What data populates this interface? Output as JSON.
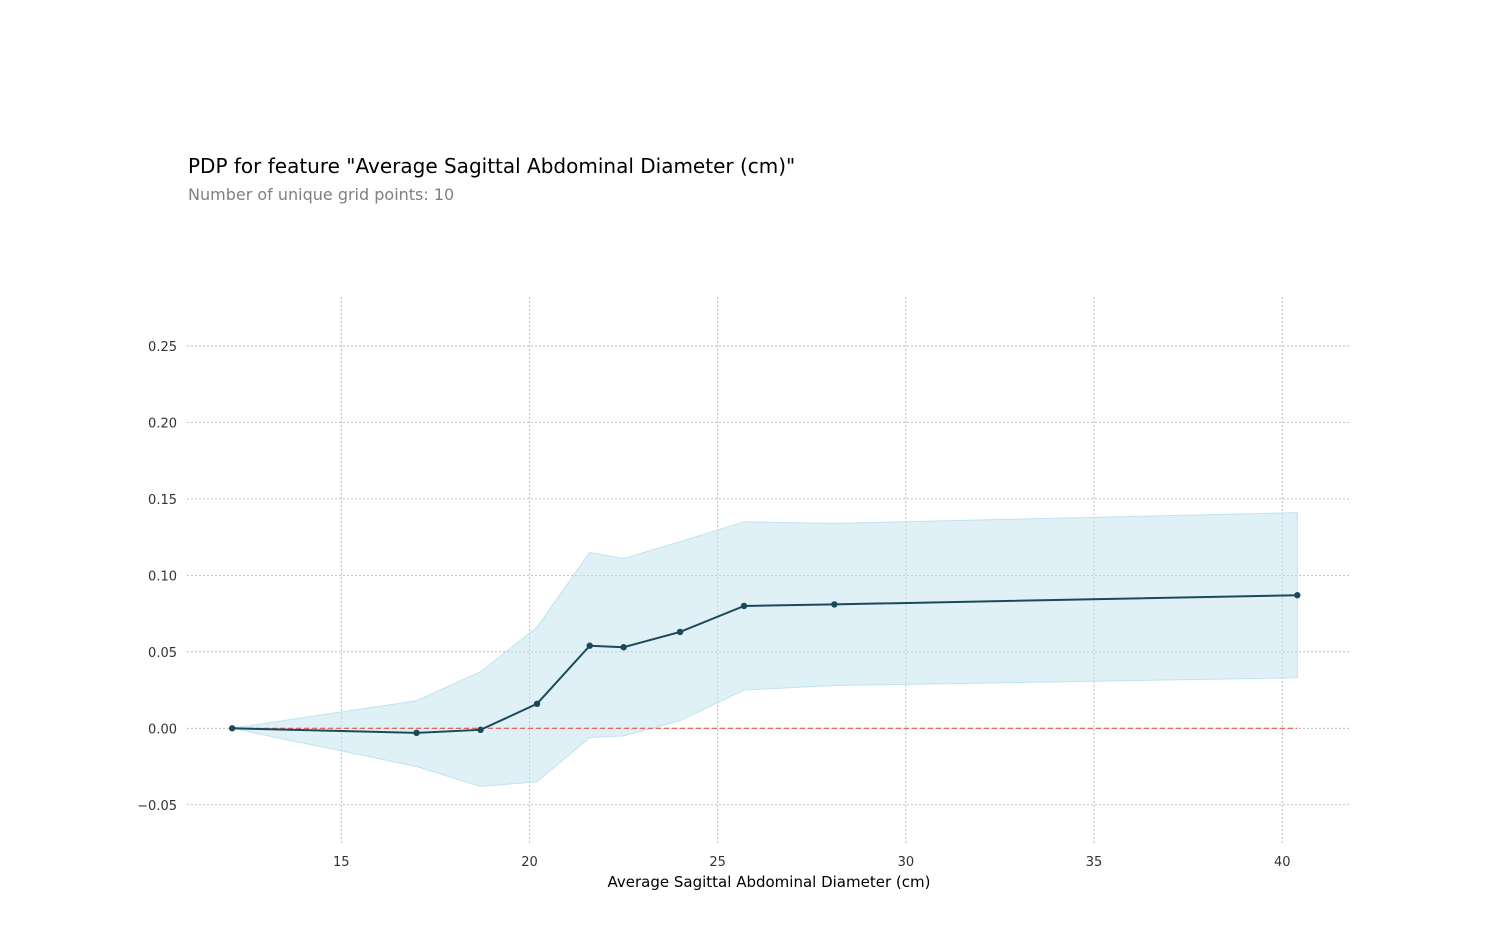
{
  "chart_data": {
    "type": "line",
    "title": "PDP for feature \"Average Sagittal Abdominal Diameter (cm)\"",
    "subtitle": "Number of unique grid points: 10",
    "xlabel": "Average Sagittal Abdominal Diameter (cm)",
    "ylabel": "",
    "xlim": [
      10.9,
      41.8
    ],
    "ylim": [
      -0.075,
      0.282
    ],
    "xticks": [
      15,
      20,
      25,
      30,
      35,
      40
    ],
    "xtick_labels": [
      "15",
      "20",
      "25",
      "30",
      "35",
      "40"
    ],
    "yticks": [
      -0.05,
      0.0,
      0.05,
      0.1,
      0.15,
      0.2,
      0.25
    ],
    "ytick_labels": [
      "−0.05",
      "0.00",
      "0.05",
      "0.10",
      "0.15",
      "0.20",
      "0.25"
    ],
    "grid": true,
    "legend": "none",
    "series": [
      {
        "x": [
          12.1,
          17.0,
          18.7,
          20.2,
          21.6,
          22.5,
          24.0,
          25.7,
          28.1,
          40.4
        ],
        "values": [
          0.0,
          -0.003,
          -0.001,
          0.016,
          0.054,
          0.053,
          0.063,
          0.08,
          0.081,
          0.087
        ],
        "upper": [
          0.0,
          0.018,
          0.037,
          0.066,
          0.115,
          0.111,
          0.122,
          0.135,
          0.134,
          0.141
        ],
        "lower": [
          0.0,
          -0.025,
          -0.038,
          -0.035,
          -0.006,
          -0.005,
          0.005,
          0.025,
          0.028,
          0.033
        ]
      }
    ],
    "reference_line": {
      "y": 0.0
    },
    "colors": {
      "line": "#1a4a5a",
      "band": "#bfe4ef",
      "reference": "#e8543f",
      "grid": "#b0b0b0"
    }
  }
}
